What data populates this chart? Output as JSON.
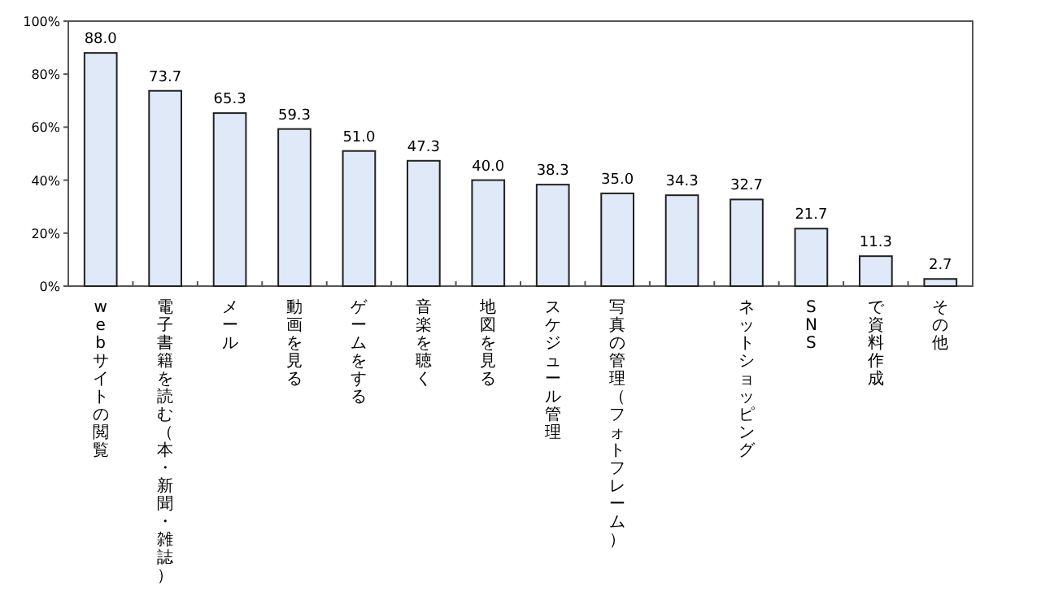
{
  "chart_data": {
    "type": "bar",
    "categories": [
      "webサイトの閲覧",
      "電子書籍を読む（本・新聞・雑誌）",
      "メール",
      "動画を見る",
      "ゲームをする",
      "音楽を聴く",
      "地図を見る",
      "スケジュール管理",
      "写真の管理（フォトフレーム）",
      null,
      "ネットショッピング",
      "SNS",
      "で資料作成",
      "その他"
    ],
    "values": [
      88.0,
      73.7,
      65.3,
      59.3,
      51.0,
      47.3,
      40.0,
      38.3,
      35.0,
      34.3,
      32.7,
      21.7,
      11.3,
      2.7
    ],
    "color": "#dfe9f7",
    "ylim": [
      0,
      100
    ],
    "yticks": [
      {
        "value": 0,
        "label": "0%"
      },
      {
        "value": 20,
        "label": "20%"
      },
      {
        "value": 40,
        "label": "40%"
      },
      {
        "value": 60,
        "label": "60%"
      },
      {
        "value": 80,
        "label": "80%"
      },
      {
        "value": 100,
        "label": "100%"
      }
    ],
    "value_labels": [
      "88.0",
      "73.7",
      "65.3",
      "59.3",
      "51.0",
      "47.3",
      "40.0",
      "38.3",
      "35.0",
      "34.3",
      "32.7",
      "21.7",
      "11.3",
      "2.7"
    ],
    "grid": false
  }
}
